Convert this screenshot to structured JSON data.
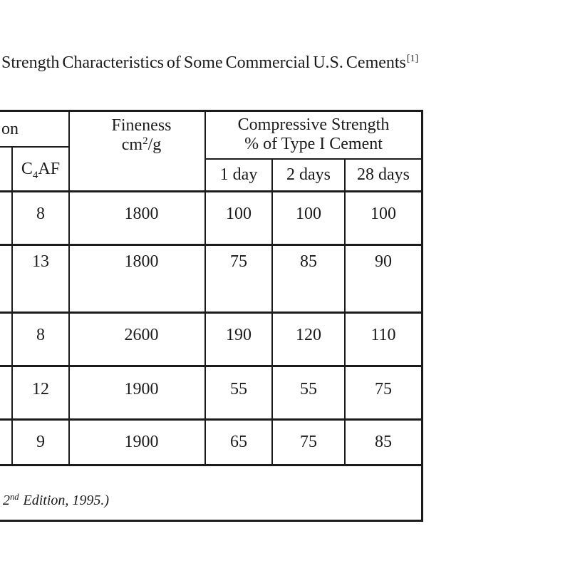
{
  "title": {
    "text": "Strength Characteristics of Some Commercial U.S. Cements",
    "superscript": "[1]"
  },
  "table": {
    "headers": {
      "composition_fragment": "on",
      "c4af": {
        "base": "C",
        "sub": "4",
        "rest": "AF"
      },
      "fineness_line1": "Fineness",
      "fineness_unit": {
        "base": "cm",
        "sup": "2",
        "rest": "/g"
      },
      "compressive_line1": "Compressive Strength",
      "compressive_line2": "% of Type I Cement",
      "day1": "1 day",
      "day2": "2 days",
      "day28": "28 days"
    },
    "rows": [
      {
        "c4af": "8",
        "fineness": "1800",
        "day1": "100",
        "day2": "100",
        "day28": "100"
      },
      {
        "c4af": "13",
        "fineness": "1800",
        "day1": "75",
        "day2": "85",
        "day28": "90"
      },
      {
        "c4af": "8",
        "fineness": "2600",
        "day1": "190",
        "day2": "120",
        "day28": "110"
      },
      {
        "c4af": "12",
        "fineness": "1900",
        "day1": "55",
        "day2": "55",
        "day28": "75"
      },
      {
        "c4af": "9",
        "fineness": "1900",
        "day1": "65",
        "day2": "75",
        "day28": "85"
      }
    ],
    "footer": {
      "prefix": "2",
      "superscript": "nd",
      "text": "Edition, 1995.)"
    }
  },
  "colors": {
    "ink": "#1b1b1b",
    "background": "#ffffff"
  }
}
